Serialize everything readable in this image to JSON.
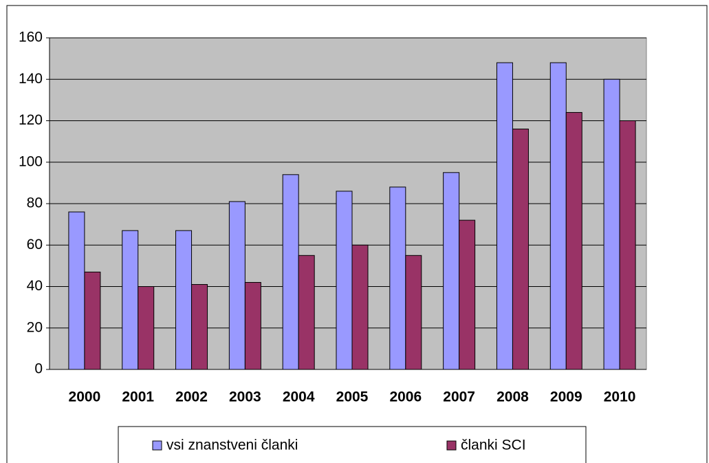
{
  "chart_data": {
    "type": "bar",
    "categories": [
      "2000",
      "2001",
      "2002",
      "2003",
      "2004",
      "2005",
      "2006",
      "2007",
      "2008",
      "2009",
      "2010"
    ],
    "series": [
      {
        "name": "vsi znanstveni članki",
        "color": "#9999ff",
        "values": [
          76,
          67,
          67,
          81,
          94,
          86,
          88,
          95,
          148,
          148,
          140
        ]
      },
      {
        "name": "članki SCI",
        "color": "#993366",
        "values": [
          47,
          40,
          41,
          42,
          55,
          60,
          55,
          72,
          116,
          124,
          120
        ]
      }
    ],
    "ylim": [
      0,
      160
    ],
    "yticks": [
      0,
      20,
      40,
      60,
      80,
      100,
      120,
      140,
      160
    ],
    "grid": true
  }
}
